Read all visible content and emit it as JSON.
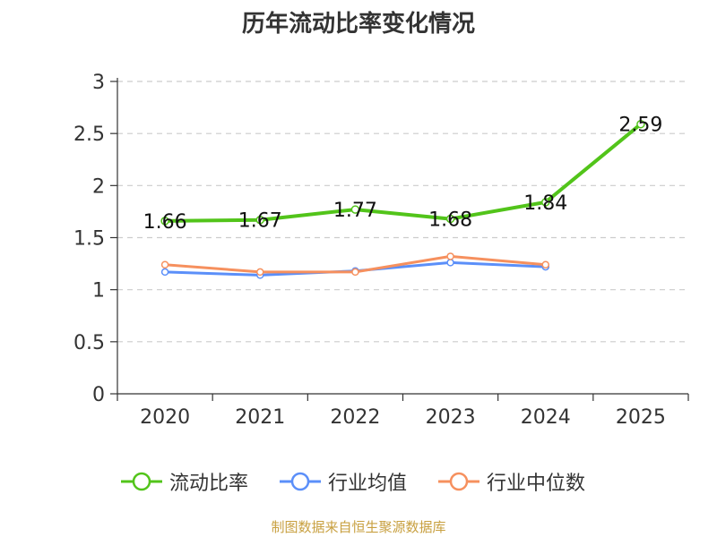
{
  "chart_data": {
    "type": "line",
    "title": "历年流动比率变化情况",
    "categories": [
      "2020",
      "2021",
      "2022",
      "2023",
      "2024",
      "2025"
    ],
    "yticks": [
      "0",
      "0.5",
      "1",
      "1.5",
      "2",
      "2.5",
      "3"
    ],
    "ylim": [
      0,
      3
    ],
    "grid": true,
    "legend_position": "bottom",
    "series": [
      {
        "name": "流动比率",
        "color": "#52c41a",
        "values": [
          1.66,
          1.67,
          1.77,
          1.68,
          1.84,
          2.59
        ],
        "labels": [
          "1.66",
          "1.67",
          "1.77",
          "1.68",
          "1.84",
          "2.59"
        ]
      },
      {
        "name": "行业均值",
        "color": "#5b8ff9",
        "values": [
          1.17,
          1.14,
          1.18,
          1.26,
          1.22,
          null
        ]
      },
      {
        "name": "行业中位数",
        "color": "#f6905e",
        "values": [
          1.24,
          1.17,
          1.17,
          1.32,
          1.24,
          null
        ]
      }
    ]
  },
  "source": "制图数据来自恒生聚源数据库"
}
